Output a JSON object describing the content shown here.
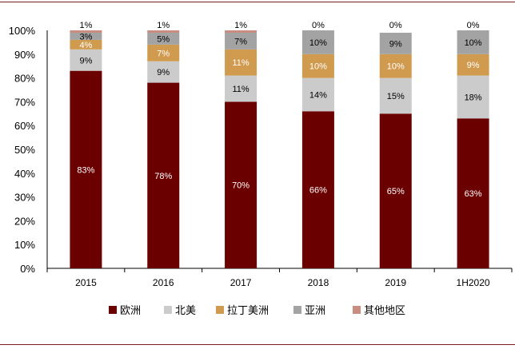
{
  "chart_data": {
    "type": "bar",
    "stacked": true,
    "title": "",
    "xlabel": "",
    "ylabel": "",
    "ylim": [
      0,
      100
    ],
    "y_ticks": [
      "0%",
      "10%",
      "20%",
      "30%",
      "40%",
      "50%",
      "60%",
      "70%",
      "80%",
      "90%",
      "100%"
    ],
    "categories": [
      "2015",
      "2016",
      "2017",
      "2018",
      "2019",
      "1H2020"
    ],
    "series": [
      {
        "name": "欧洲",
        "color": "#6b0000",
        "label_color": "#ffffff",
        "values": [
          83,
          78,
          70,
          66,
          65,
          63
        ],
        "labels": [
          "83%",
          "78%",
          "70%",
          "66%",
          "65%",
          "63%"
        ]
      },
      {
        "name": "北美",
        "color": "#cbcbcb",
        "label_color": "#000000",
        "values": [
          9,
          9,
          11,
          14,
          15,
          18
        ],
        "labels": [
          "9%",
          "9%",
          "11%",
          "14%",
          "15%",
          "18%"
        ]
      },
      {
        "name": "拉丁美洲",
        "color": "#d09b4f",
        "label_color": "#ffffff",
        "values": [
          4,
          7,
          11,
          10,
          10,
          9
        ],
        "labels": [
          "4%",
          "7%",
          "11%",
          "10%",
          "10%",
          "9%"
        ]
      },
      {
        "name": "亚洲",
        "color": "#a3a3a3",
        "label_color": "#000000",
        "values": [
          3,
          5,
          7,
          10,
          9,
          10
        ],
        "labels": [
          "3%",
          "5%",
          "7%",
          "10%",
          "9%",
          "10%"
        ]
      },
      {
        "name": "其他地区",
        "color": "#c98c7e",
        "label_color": "#000000",
        "values": [
          1,
          1,
          1,
          0,
          0,
          0
        ],
        "labels": [
          "1%",
          "1%",
          "1%",
          "0%",
          "0%",
          "0%"
        ]
      }
    ],
    "legend_position": "bottom"
  }
}
